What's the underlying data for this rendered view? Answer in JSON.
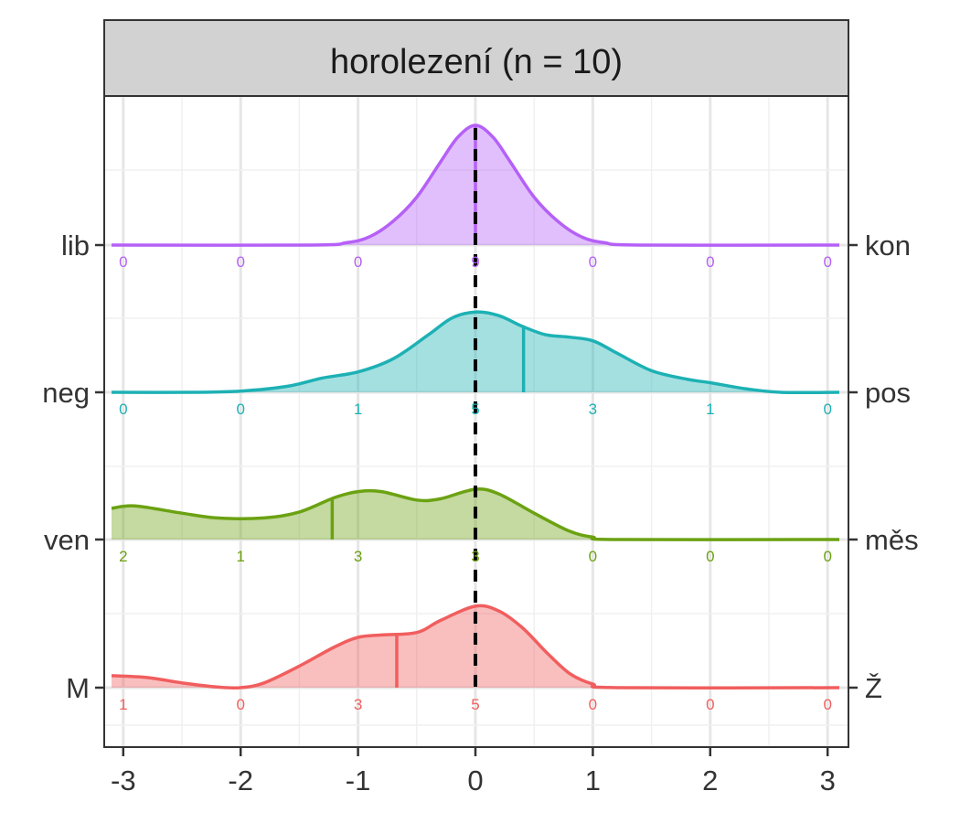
{
  "chart_data": {
    "type": "ridgeline",
    "title": "horolezení (n = 10)",
    "xlim": [
      -3.1,
      3.1
    ],
    "x_ticks": [
      -3,
      -2,
      -1,
      0,
      1,
      2,
      3
    ],
    "x_tick_labels": [
      "-3",
      "-2",
      "-1",
      "0",
      "1",
      "2",
      "3"
    ],
    "grid": true,
    "reference_line": 0,
    "rows": [
      {
        "left_label": "M",
        "right_label": "Ž",
        "color": "#F15E5E",
        "counts": [
          "1",
          "0",
          "3",
          "5",
          "0",
          "0",
          "0"
        ],
        "mean": -0.67,
        "density": [
          [
            -3.1,
            0.1
          ],
          [
            -2.8,
            0.085
          ],
          [
            -2.5,
            0.04
          ],
          [
            -2.2,
            0.005
          ],
          [
            -2.0,
            0.0
          ],
          [
            -1.8,
            0.04
          ],
          [
            -1.5,
            0.18
          ],
          [
            -1.2,
            0.34
          ],
          [
            -1.0,
            0.42
          ],
          [
            -0.8,
            0.44
          ],
          [
            -0.5,
            0.46
          ],
          [
            -0.3,
            0.56
          ],
          [
            0.0,
            0.68
          ],
          [
            0.2,
            0.64
          ],
          [
            0.4,
            0.5
          ],
          [
            0.6,
            0.3
          ],
          [
            0.8,
            0.12
          ],
          [
            1.0,
            0.03
          ],
          [
            1.2,
            0.0
          ],
          [
            3.1,
            0.0
          ]
        ]
      },
      {
        "left_label": "ven",
        "right_label": "měs",
        "color": "#6BA212",
        "counts": [
          "2",
          "1",
          "3",
          "3",
          "0",
          "0",
          "0"
        ],
        "mean": -1.22,
        "density": [
          [
            -3.1,
            0.26
          ],
          [
            -2.9,
            0.28
          ],
          [
            -2.5,
            0.22
          ],
          [
            -2.2,
            0.18
          ],
          [
            -1.8,
            0.18
          ],
          [
            -1.5,
            0.23
          ],
          [
            -1.2,
            0.35
          ],
          [
            -1.0,
            0.4
          ],
          [
            -0.8,
            0.4
          ],
          [
            -0.5,
            0.33
          ],
          [
            -0.3,
            0.34
          ],
          [
            0.0,
            0.42
          ],
          [
            0.2,
            0.38
          ],
          [
            0.5,
            0.22
          ],
          [
            0.8,
            0.07
          ],
          [
            1.0,
            0.02
          ],
          [
            1.2,
            0.0
          ],
          [
            3.1,
            0.0
          ]
        ]
      },
      {
        "left_label": "neg",
        "right_label": "pos",
        "color": "#1DB1B4",
        "counts": [
          "0",
          "0",
          "1",
          "5",
          "3",
          "1",
          "0"
        ],
        "mean": 0.41,
        "density": [
          [
            -3.1,
            0.0
          ],
          [
            -2.4,
            0.0
          ],
          [
            -2.0,
            0.01
          ],
          [
            -1.6,
            0.05
          ],
          [
            -1.3,
            0.12
          ],
          [
            -1.0,
            0.17
          ],
          [
            -0.7,
            0.28
          ],
          [
            -0.4,
            0.48
          ],
          [
            -0.2,
            0.62
          ],
          [
            0.0,
            0.67
          ],
          [
            0.2,
            0.64
          ],
          [
            0.4,
            0.55
          ],
          [
            0.6,
            0.48
          ],
          [
            0.8,
            0.46
          ],
          [
            1.0,
            0.43
          ],
          [
            1.2,
            0.33
          ],
          [
            1.5,
            0.18
          ],
          [
            1.8,
            0.11
          ],
          [
            2.0,
            0.08
          ],
          [
            2.3,
            0.03
          ],
          [
            2.6,
            0.0
          ],
          [
            3.1,
            0.0
          ]
        ]
      },
      {
        "left_label": "lib",
        "right_label": "kon",
        "color": "#B560F7",
        "counts": [
          "0",
          "0",
          "0",
          "9",
          "0",
          "0",
          "0"
        ],
        "mean": 0.0,
        "density": [
          [
            -3.1,
            0.0
          ],
          [
            -1.4,
            0.0
          ],
          [
            -1.1,
            0.02
          ],
          [
            -0.9,
            0.07
          ],
          [
            -0.7,
            0.2
          ],
          [
            -0.5,
            0.4
          ],
          [
            -0.3,
            0.69
          ],
          [
            -0.15,
            0.9
          ],
          [
            0.0,
            1.0
          ],
          [
            0.15,
            0.9
          ],
          [
            0.3,
            0.69
          ],
          [
            0.5,
            0.4
          ],
          [
            0.7,
            0.2
          ],
          [
            0.9,
            0.07
          ],
          [
            1.1,
            0.02
          ],
          [
            1.4,
            0.0
          ],
          [
            3.1,
            0.0
          ]
        ]
      }
    ]
  }
}
